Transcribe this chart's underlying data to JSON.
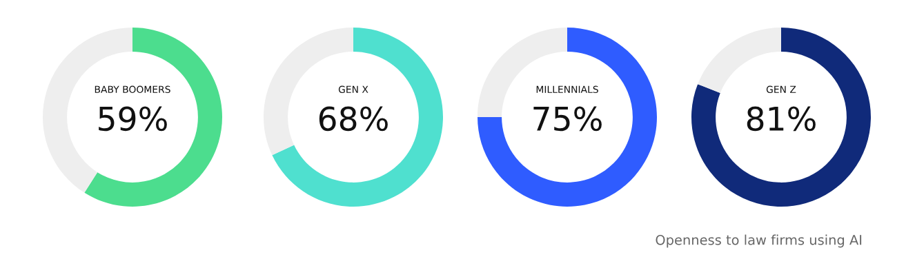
{
  "chart_data": [
    {
      "type": "donut",
      "title": "BABY BOOMERS",
      "categories": [
        null,
        null
      ],
      "values": [
        59,
        41
      ],
      "colors": [
        "#4cdd8e",
        "#eeeeee"
      ],
      "value_labels": [
        "59%",
        null
      ]
    },
    {
      "type": "donut",
      "title": "GEN X",
      "categories": [
        null,
        null
      ],
      "values": [
        68,
        32
      ],
      "colors": [
        "#4fe0cf",
        "#eeeeee"
      ],
      "value_labels": [
        "68%",
        null
      ]
    },
    {
      "type": "donut",
      "title": "MILLENNIALS",
      "categories": [
        null,
        null
      ],
      "values": [
        75,
        25
      ],
      "colors": [
        "#2f5cff",
        "#eeeeee"
      ],
      "value_labels": [
        "75%",
        null
      ]
    },
    {
      "type": "donut",
      "title": "GEN Z",
      "categories": [
        null,
        null
      ],
      "values": [
        81,
        19
      ],
      "colors": [
        "#102a7a",
        "#eeeeee"
      ],
      "value_labels": [
        "81%",
        null
      ],
      "annotations": [
        "Openness to law firms using AI"
      ]
    }
  ]
}
